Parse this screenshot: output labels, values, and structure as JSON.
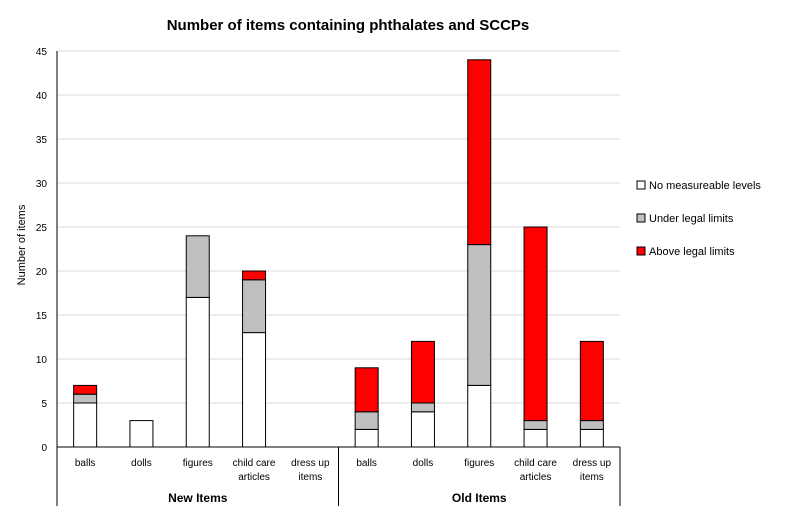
{
  "chart_data": {
    "type": "bar",
    "stacked": true,
    "title": "Number of items containing phthalates and SCCPs",
    "ylabel": "Number of items",
    "xlabel": "",
    "ylim": [
      0,
      45
    ],
    "yticks": [
      0,
      5,
      10,
      15,
      20,
      25,
      30,
      35,
      40,
      45
    ],
    "grid": true,
    "legend_position": "right",
    "groups": [
      {
        "name": "New Items",
        "categories": [
          "balls",
          "dolls",
          "figures",
          "child care articles",
          "dress up items"
        ]
      },
      {
        "name": "Old Items",
        "categories": [
          "balls",
          "dolls",
          "figures",
          "child care articles",
          "dress up items"
        ]
      }
    ],
    "categories": [
      [
        "balls"
      ],
      [
        "dolls"
      ],
      [
        "figures"
      ],
      [
        "child care",
        "articles"
      ],
      [
        "dress up",
        "items"
      ],
      [
        "balls"
      ],
      [
        "dolls"
      ],
      [
        "figures"
      ],
      [
        "child care",
        "articles"
      ],
      [
        "dress up",
        "items"
      ]
    ],
    "series": [
      {
        "name": "No measureable levels",
        "color": "#FFFFFF",
        "values": [
          5,
          3,
          17,
          13,
          0,
          2,
          4,
          7,
          2,
          2
        ]
      },
      {
        "name": "Under legal limits",
        "color": "#C0C0C0",
        "values": [
          1,
          0,
          7,
          6,
          0,
          2,
          1,
          16,
          1,
          1
        ]
      },
      {
        "name": "Above legal limits",
        "color": "#FF0000",
        "values": [
          1,
          0,
          0,
          1,
          0,
          5,
          7,
          21,
          22,
          9
        ]
      }
    ]
  }
}
